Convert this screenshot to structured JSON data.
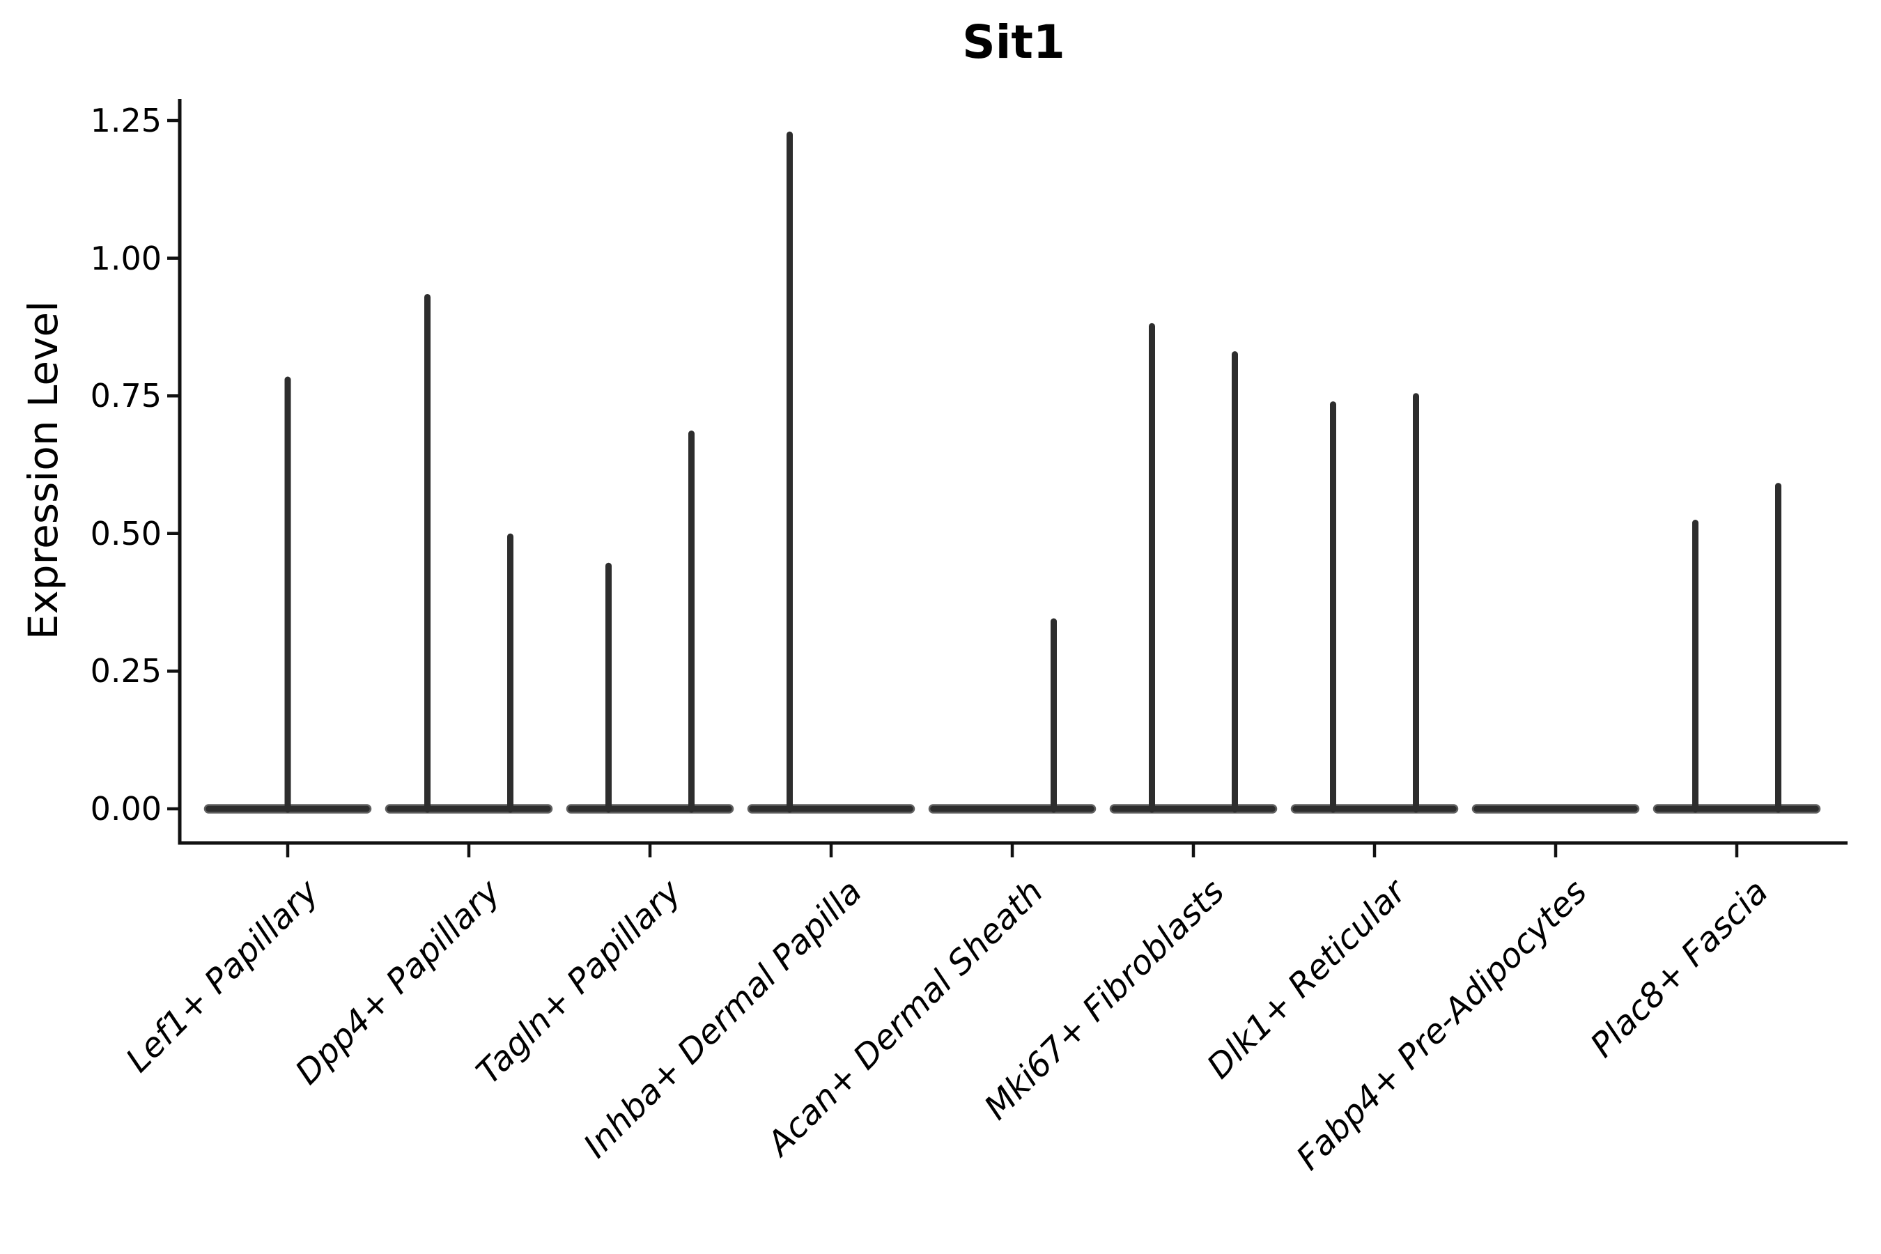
{
  "chart_data": {
    "type": "violin",
    "title": "Sit1",
    "xlabel": "",
    "ylabel": "Expression Level",
    "ylim": [
      0,
      1.29
    ],
    "yticks": [
      "0.00",
      "0.25",
      "0.50",
      "0.75",
      "1.00",
      "1.25"
    ],
    "ytick_values": [
      0.0,
      0.25,
      0.5,
      0.75,
      1.0,
      1.25
    ],
    "grid": false,
    "legend": null,
    "description": "Violin plot of Sit1 expression; most cells at 0 so each violin renders as a wide flat base at 0 with thin density spikes. Categories with two groups show two half-width violins whose spikes sit left/right of the category tick.",
    "categories": [
      {
        "label": "Lef1+ Papillary",
        "violins": [
          {
            "side": "center",
            "peak": 0.785
          }
        ]
      },
      {
        "label": "Dpp4+ Papillary",
        "violins": [
          {
            "side": "left",
            "peak": 0.935
          },
          {
            "side": "right",
            "peak": 0.5
          }
        ]
      },
      {
        "label": "Tagln+ Papillary",
        "violins": [
          {
            "side": "left",
            "peak": 0.447
          },
          {
            "side": "right",
            "peak": 0.687
          }
        ]
      },
      {
        "label": "Inhba+ Dermal Papilla",
        "violins": [
          {
            "side": "left",
            "peak": 1.23
          }
        ]
      },
      {
        "label": "Acan+ Dermal Sheath",
        "violins": [
          {
            "side": "right",
            "peak": 0.346
          }
        ]
      },
      {
        "label": "Mki67+ Fibroblasts",
        "violins": [
          {
            "side": "left",
            "peak": 0.882
          },
          {
            "side": "right",
            "peak": 0.831
          }
        ]
      },
      {
        "label": "Dlk1+ Reticular",
        "violins": [
          {
            "side": "left",
            "peak": 0.74
          },
          {
            "side": "right",
            "peak": 0.755
          }
        ]
      },
      {
        "label": "Fabp4+ Pre-Adipocytes",
        "violins": []
      },
      {
        "label": "Plac8+ Fascia",
        "violins": [
          {
            "side": "left",
            "peak": 0.525
          },
          {
            "side": "right",
            "peak": 0.592
          }
        ]
      }
    ],
    "style": {
      "violin_color": "#2d2d2d",
      "violin_edge_color": "#5f5f5f",
      "axis_color": "#111111",
      "text_color": "#000000",
      "background": "#ffffff"
    }
  }
}
